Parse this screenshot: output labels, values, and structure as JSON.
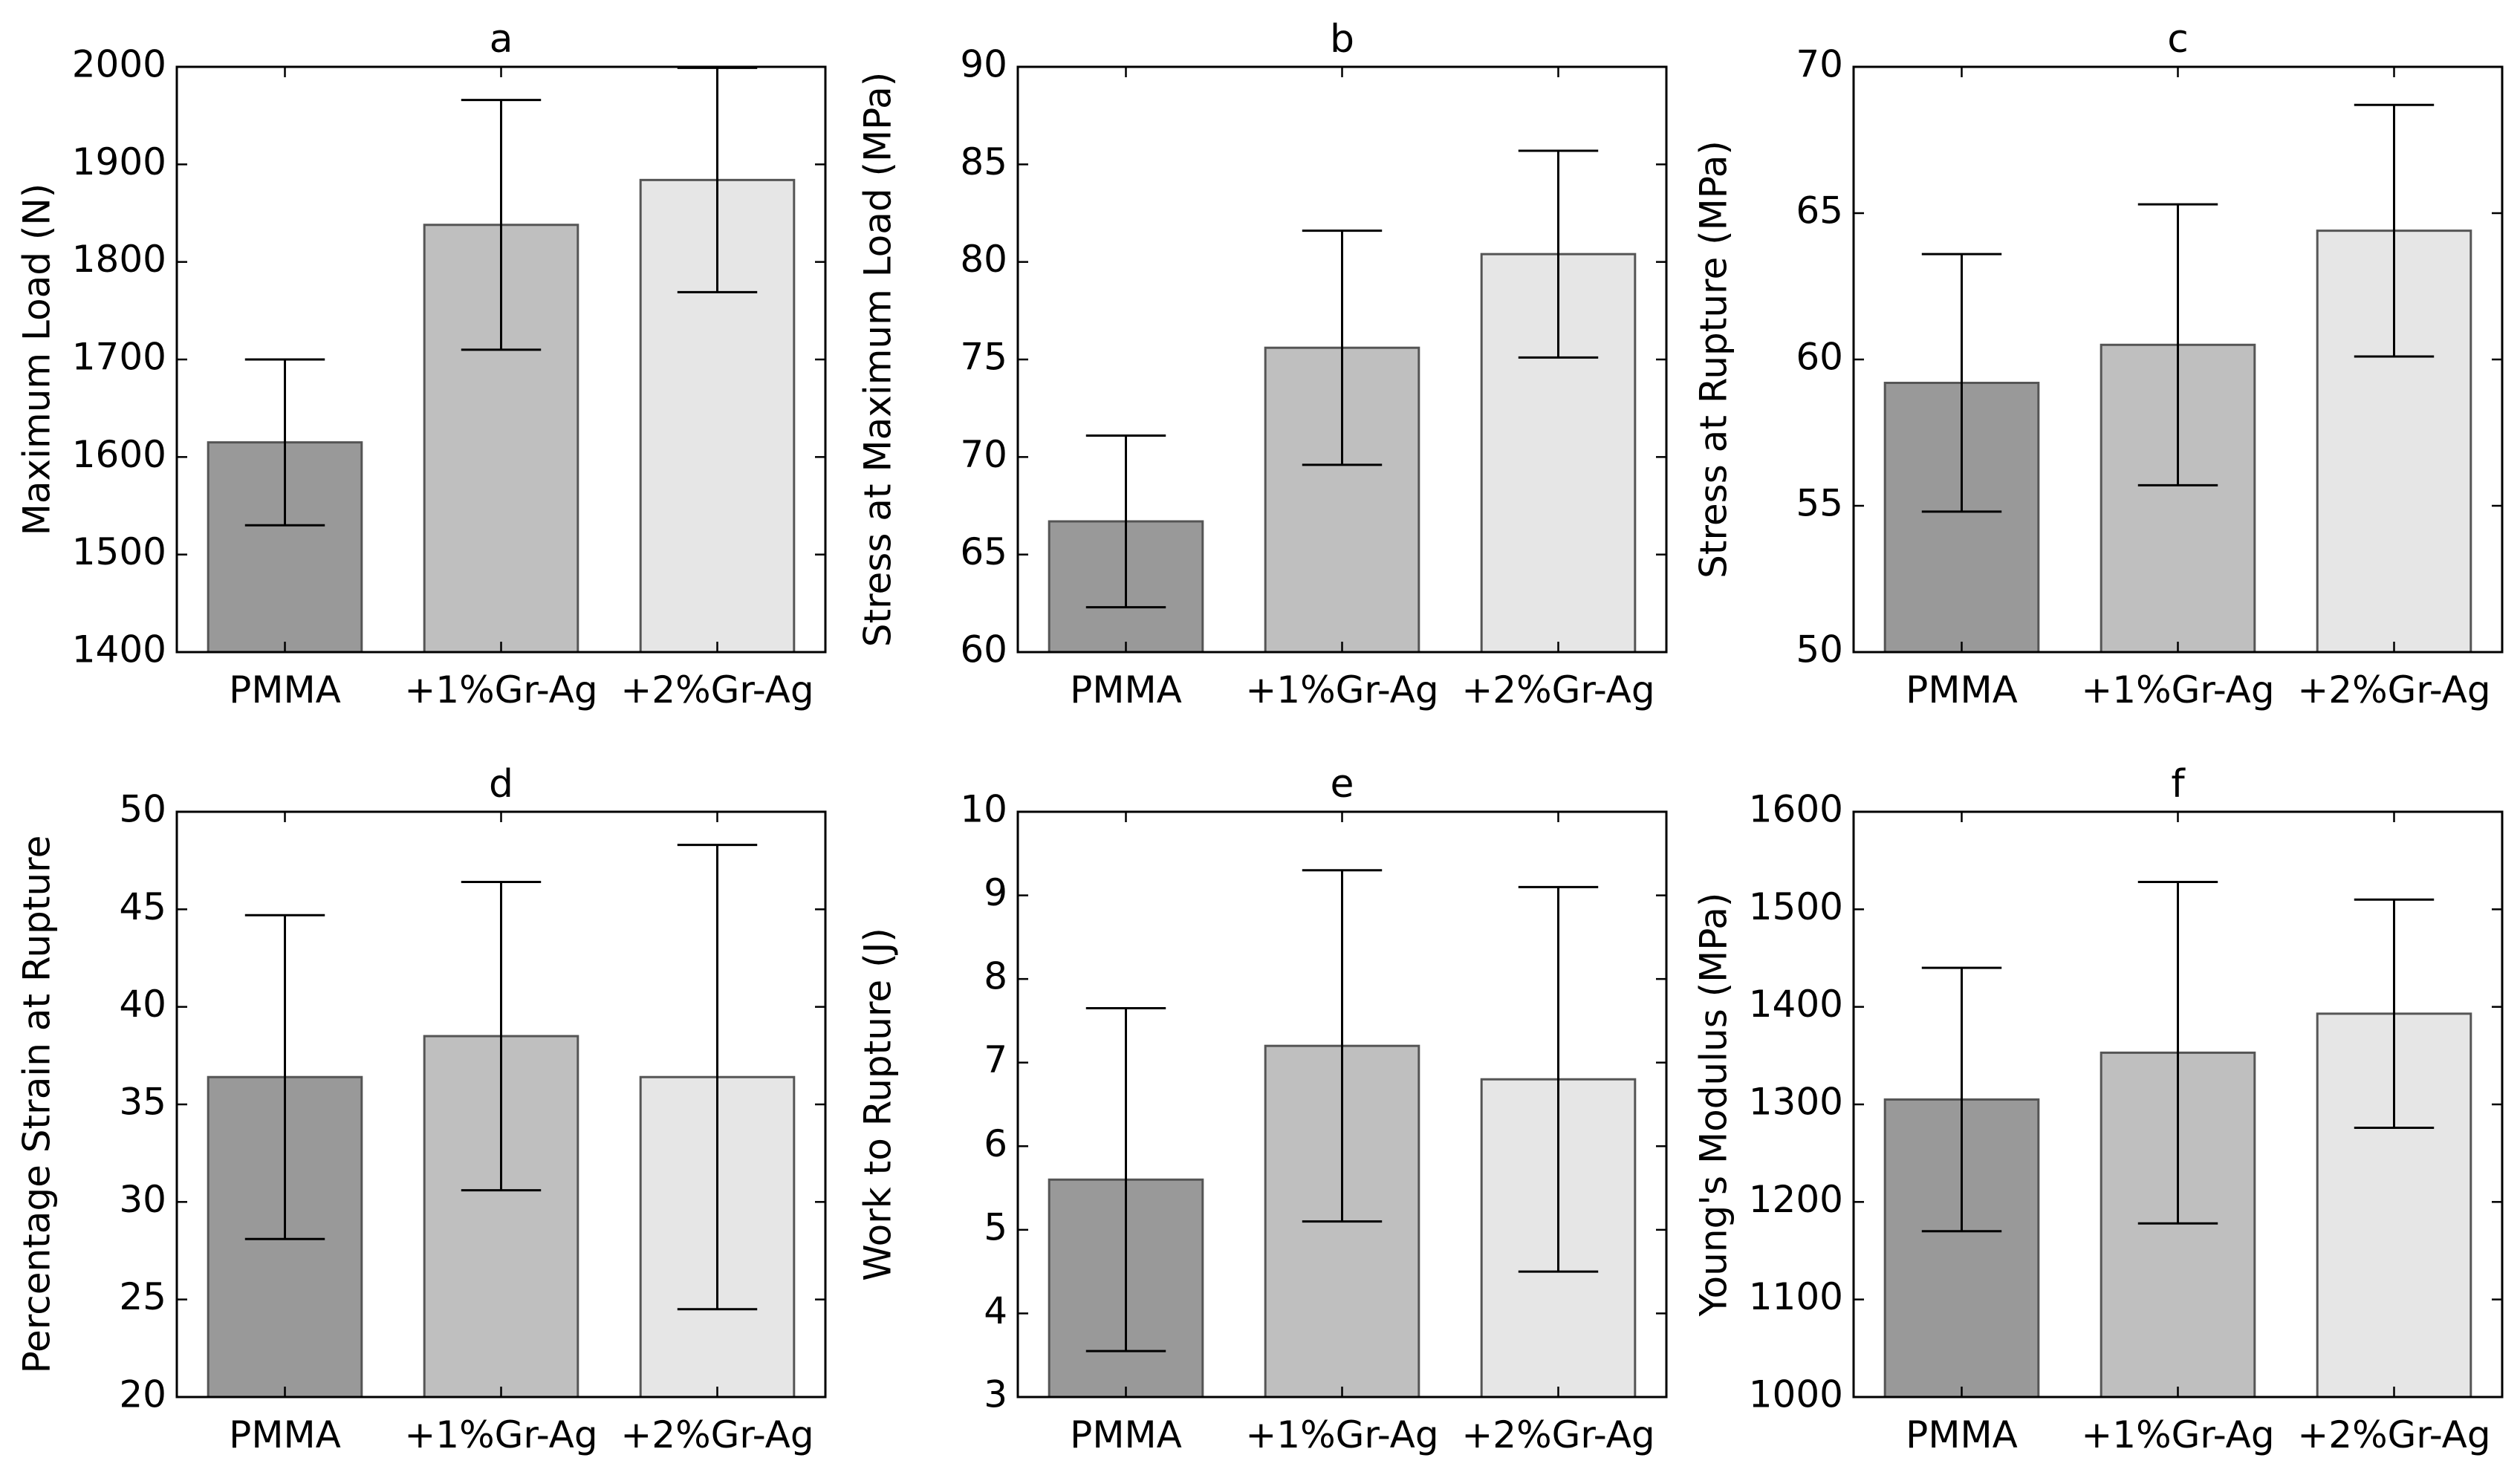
{
  "colors": {
    "bars": [
      "#999999",
      "#bfbfbf",
      "#e6e6e6"
    ],
    "bar_edge": "#555555",
    "axes": "#000000",
    "error_bar": "#000000"
  },
  "chart_data": [
    {
      "panel": "a",
      "type": "bar",
      "title": "a",
      "categories": [
        "PMMA",
        "+1%Gr-Ag",
        "+2%Gr-Ag"
      ],
      "values": [
        1615,
        1838,
        1884
      ],
      "errors": [
        85,
        128,
        115
      ],
      "ylabel": "Maximum Load (N)",
      "ylim": [
        1400,
        2000
      ],
      "yticks": [
        1400,
        1500,
        1600,
        1700,
        1800,
        1900,
        2000
      ]
    },
    {
      "panel": "b",
      "type": "bar",
      "title": "b",
      "categories": [
        "PMMA",
        "+1%Gr-Ag",
        "+2%Gr-Ag"
      ],
      "values": [
        66.7,
        75.6,
        80.4
      ],
      "errors": [
        4.4,
        6.0,
        5.3
      ],
      "ylabel": "Stress at Maximum Load (MPa)",
      "ylim": [
        60,
        90
      ],
      "yticks": [
        60,
        65,
        70,
        75,
        80,
        85,
        90
      ]
    },
    {
      "panel": "c",
      "type": "bar",
      "title": "c",
      "categories": [
        "PMMA",
        "+1%Gr-Ag",
        "+2%Gr-Ag"
      ],
      "values": [
        59.2,
        60.5,
        64.4
      ],
      "errors": [
        4.4,
        4.8,
        4.3
      ],
      "ylabel": "Stress at Rupture (MPa)",
      "ylim": [
        50,
        70
      ],
      "yticks": [
        50,
        55,
        60,
        65,
        70
      ]
    },
    {
      "panel": "d",
      "type": "bar",
      "title": "d",
      "categories": [
        "PMMA",
        "+1%Gr-Ag",
        "+2%Gr-Ag"
      ],
      "values": [
        36.4,
        38.5,
        36.4
      ],
      "errors": [
        8.3,
        7.9,
        11.9
      ],
      "ylabel": "Percentage Strain at Rupture",
      "ylim": [
        20,
        50
      ],
      "yticks": [
        20,
        25,
        30,
        35,
        40,
        45,
        50
      ]
    },
    {
      "panel": "e",
      "type": "bar",
      "title": "e",
      "categories": [
        "PMMA",
        "+1%Gr-Ag",
        "+2%Gr-Ag"
      ],
      "values": [
        5.6,
        7.2,
        6.8
      ],
      "errors": [
        2.05,
        2.1,
        2.3
      ],
      "ylabel": "Work to Rupture (J)",
      "ylim": [
        3,
        10
      ],
      "yticks": [
        3,
        4,
        5,
        6,
        7,
        8,
        9,
        10
      ]
    },
    {
      "panel": "f",
      "type": "bar",
      "title": "f",
      "categories": [
        "PMMA",
        "+1%Gr-Ag",
        "+2%Gr-Ag"
      ],
      "values": [
        1305,
        1353,
        1393
      ],
      "errors": [
        135,
        175,
        117
      ],
      "ylabel": "Young's Modulus (MPa)",
      "ylim": [
        1000,
        1600
      ],
      "yticks": [
        1000,
        1100,
        1200,
        1300,
        1400,
        1500,
        1600
      ]
    }
  ]
}
